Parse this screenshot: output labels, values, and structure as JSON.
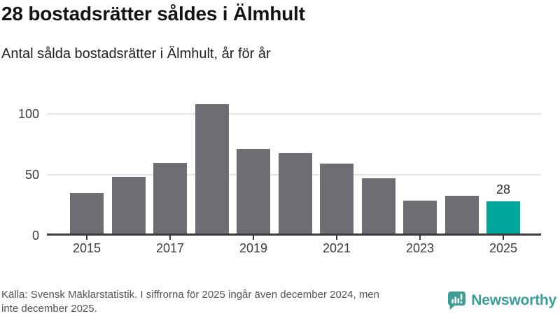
{
  "header": {
    "title": "28 bostadsrätter såldes i Älmhult",
    "subtitle": "Antal sålda bostadsrätter i Älmhult, år för år"
  },
  "chart_data": {
    "type": "bar",
    "title": "28 bostadsrätter såldes i Älmhult",
    "xlabel": "",
    "ylabel": "",
    "categories": [
      "2015",
      "2016",
      "2017",
      "2018",
      "2019",
      "2020",
      "2021",
      "2022",
      "2023",
      "2024",
      "2025"
    ],
    "values": [
      35,
      48,
      60,
      108,
      71,
      68,
      59,
      47,
      29,
      33,
      28
    ],
    "highlight": {
      "index": 10,
      "label": "28"
    },
    "yticks": [
      {
        "label": "0",
        "value": 0
      },
      {
        "label": "50",
        "value": 50
      },
      {
        "label": "100",
        "value": 100
      }
    ],
    "xtick_labels": [
      "2015",
      "2017",
      "2019",
      "2021",
      "2023",
      "2025"
    ],
    "ylim": [
      0,
      113
    ],
    "grid": "horizontal",
    "legend": "none"
  },
  "colors": {
    "bar": "#6e6d73",
    "highlight": "#00a69a",
    "brand": "#3c9e97",
    "axis": "#3a3a3e",
    "gridline": "#e6e6e6"
  },
  "footer": {
    "source_lines": [
      "Källa: Svensk Mäklarstatistik. I siffrorna för 2025 ingår även december 2024, men",
      "inte december 2025."
    ],
    "brand_name": "Newsworthy"
  }
}
